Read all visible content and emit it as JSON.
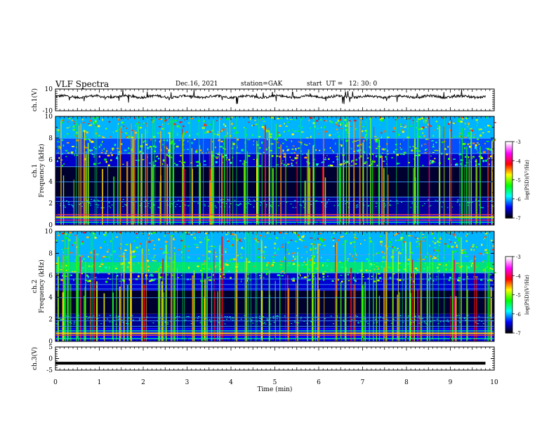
{
  "header": {
    "title": "VLF Spectra",
    "date": "Dec.16, 2021",
    "station": "station=GAK",
    "start": "start  UT =   12: 30: 0"
  },
  "colorbar": {
    "label": "log(PSD)(V²/Hz)",
    "ticks": [
      "-3",
      "-4",
      "-5",
      "-6",
      "-7"
    ],
    "range": [
      -7,
      -3
    ],
    "stops": [
      "#000000",
      "#0000ff",
      "#00ffff",
      "#00ff00",
      "#ffff00",
      "#ff0000",
      "#ff00ff",
      "#ffffff"
    ]
  },
  "chart_data": [
    {
      "type": "line",
      "ylabel": "ch.1(V)",
      "ylim": [
        -10,
        10
      ],
      "yticks": [
        "10",
        "-10"
      ],
      "xlim": [
        0,
        10
      ],
      "description_series": "waveform amplitude near +3 V with noise spikes"
    },
    {
      "type": "heatmap",
      "ylabel_top": "ch.1",
      "ylabel": "Frequency (kHz)",
      "ylim": [
        0,
        10
      ],
      "yticks": [
        "0",
        "2",
        "4",
        "6",
        "8",
        "10"
      ],
      "xlim": [
        0,
        10
      ],
      "zlabel": "log(PSD)(V²/Hz)",
      "zlim": [
        -7,
        -3
      ]
    },
    {
      "type": "heatmap",
      "ylabel_top": "ch.2",
      "ylabel": "Frequency (kHz)",
      "ylim": [
        0,
        10
      ],
      "yticks": [
        "0",
        "2",
        "4",
        "6",
        "8",
        "10"
      ],
      "xlim": [
        0,
        10
      ],
      "zlabel": "log(PSD)(V²/Hz)",
      "zlim": [
        -7,
        -3
      ]
    },
    {
      "type": "line",
      "ylabel": "ch.3(V)",
      "ylim": [
        -5,
        5
      ],
      "yticks": [
        "5",
        "0",
        "-5"
      ],
      "xlim": [
        0,
        10
      ],
      "x": [
        0,
        9.8
      ],
      "y": [
        -2,
        -2
      ]
    }
  ],
  "xaxis": {
    "label": "Time  (min)",
    "ticks": [
      "0",
      "1",
      "2",
      "3",
      "4",
      "5",
      "6",
      "7",
      "8",
      "9",
      "10"
    ]
  }
}
